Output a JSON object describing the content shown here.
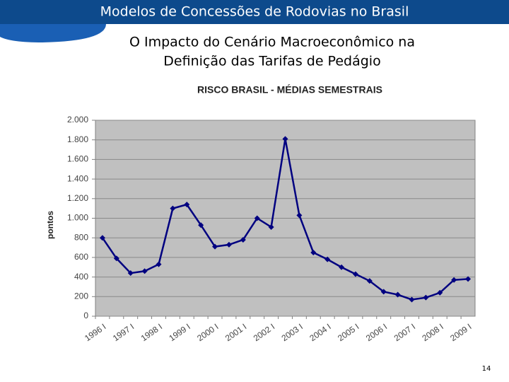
{
  "header": {
    "title": "Modelos de Concessões de Rodovias no Brasil"
  },
  "subtitle": [
    "O Impacto do Cenário Macroeconômico na",
    "Definição das Tarifas de Pedágio"
  ],
  "page_number": "14",
  "chart_data": {
    "type": "line",
    "title": "RISCO BRASIL - MÉDIAS SEMESTRAIS",
    "y_label": "pontos",
    "categories": [
      "1996 I",
      null,
      "1997 I",
      null,
      "1998 I",
      null,
      "1999 I",
      null,
      "2000 I",
      null,
      "2001 I",
      null,
      "2002 I",
      null,
      "2003 I",
      null,
      "2004 I",
      null,
      "2005 I",
      null,
      "2006 I",
      null,
      "2007 I",
      null,
      "2008 I",
      null,
      "2009 I"
    ],
    "series": [
      {
        "name": "Risco Brasil",
        "color": "#000080",
        "values": [
          800,
          590,
          440,
          460,
          530,
          1100,
          1140,
          930,
          710,
          730,
          780,
          1000,
          910,
          1810,
          1030,
          650,
          580,
          500,
          430,
          360,
          250,
          220,
          170,
          190,
          240,
          370,
          380
        ]
      }
    ],
    "ylim": [
      0,
      2000
    ],
    "yticks": [
      0,
      200,
      400,
      600,
      800,
      {
        "value": 1000,
        "label": "1.000"
      },
      {
        "value": 1200,
        "label": "1.200"
      },
      {
        "value": 1400,
        "label": "1.400"
      },
      {
        "value": 1600,
        "label": "1.600"
      },
      {
        "value": 1800,
        "label": "1.800"
      },
      {
        "value": 2000,
        "label": "2.000"
      }
    ],
    "grid": true,
    "plot_background": "#c0c0c0"
  }
}
